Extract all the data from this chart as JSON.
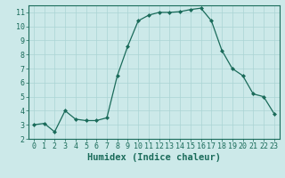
{
  "x": [
    0,
    1,
    2,
    3,
    4,
    5,
    6,
    7,
    8,
    9,
    10,
    11,
    12,
    13,
    14,
    15,
    16,
    17,
    18,
    19,
    20,
    21,
    22,
    23
  ],
  "y": [
    3.0,
    3.1,
    2.5,
    4.0,
    3.4,
    3.3,
    3.3,
    3.5,
    6.5,
    8.6,
    10.4,
    10.8,
    11.0,
    11.0,
    11.05,
    11.2,
    11.3,
    10.4,
    8.3,
    7.0,
    6.5,
    5.2,
    5.0,
    3.8
  ],
  "line_color": "#1a6b5a",
  "marker": "D",
  "marker_size": 2.0,
  "bg_color": "#cce9e9",
  "grid_color": "#aad4d4",
  "xlabel": "Humidex (Indice chaleur)",
  "xlim": [
    -0.5,
    23.5
  ],
  "ylim": [
    2,
    11.5
  ],
  "yticks": [
    2,
    3,
    4,
    5,
    6,
    7,
    8,
    9,
    10,
    11
  ],
  "xticks": [
    0,
    1,
    2,
    3,
    4,
    5,
    6,
    7,
    8,
    9,
    10,
    11,
    12,
    13,
    14,
    15,
    16,
    17,
    18,
    19,
    20,
    21,
    22,
    23
  ],
  "tick_label_fontsize": 6.0,
  "xlabel_fontsize": 7.5
}
